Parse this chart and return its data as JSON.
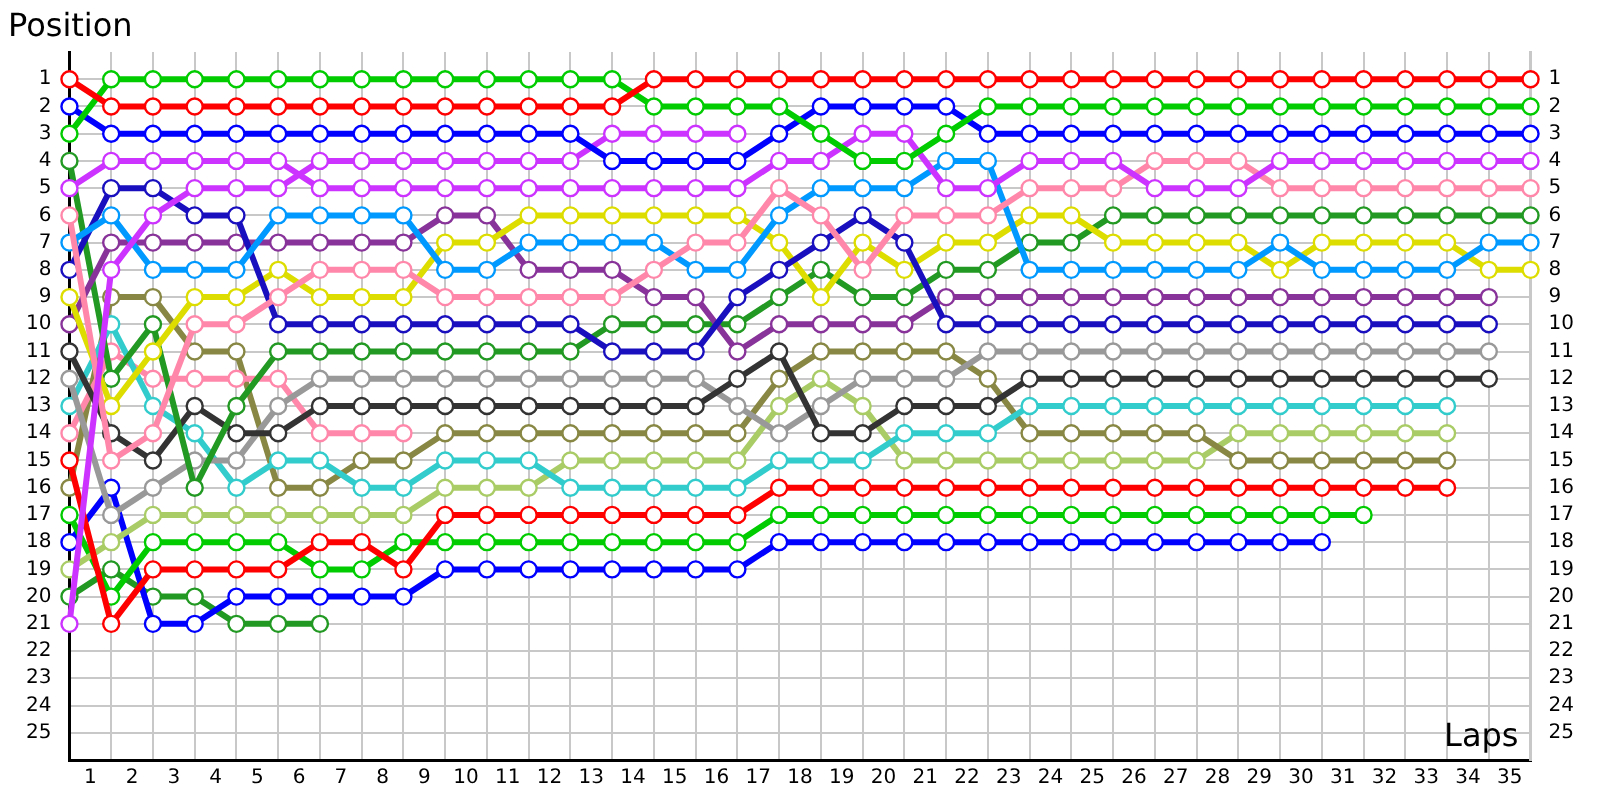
{
  "chart_data": {
    "type": "line",
    "xlabel": "Laps",
    "ylabel": "Position",
    "x": [
      0,
      1,
      2,
      3,
      4,
      5,
      6,
      7,
      8,
      9,
      10,
      11,
      12,
      13,
      14,
      15,
      16,
      17,
      18,
      19,
      20,
      21,
      22,
      23,
      24,
      25,
      26,
      27,
      28,
      29,
      30,
      31,
      32,
      33,
      34,
      35
    ],
    "xlim": [
      0,
      35
    ],
    "xticks": [
      {
        "value": 0.5,
        "label": "1"
      },
      {
        "value": 1.5,
        "label": "2"
      },
      {
        "value": 2.5,
        "label": "3"
      },
      {
        "value": 3.5,
        "label": "4"
      },
      {
        "value": 4.5,
        "label": "5"
      },
      {
        "value": 5.5,
        "label": "6"
      },
      {
        "value": 6.5,
        "label": "7"
      },
      {
        "value": 7.5,
        "label": "8"
      },
      {
        "value": 8.5,
        "label": "9"
      },
      {
        "value": 9.5,
        "label": "10"
      },
      {
        "value": 10.5,
        "label": "11"
      },
      {
        "value": 11.5,
        "label": "12"
      },
      {
        "value": 12.5,
        "label": "13"
      },
      {
        "value": 13.5,
        "label": "14"
      },
      {
        "value": 14.5,
        "label": "15"
      },
      {
        "value": 15.5,
        "label": "16"
      },
      {
        "value": 16.5,
        "label": "17"
      },
      {
        "value": 17.5,
        "label": "18"
      },
      {
        "value": 18.5,
        "label": "19"
      },
      {
        "value": 19.5,
        "label": "20"
      },
      {
        "value": 20.5,
        "label": "21"
      },
      {
        "value": 21.5,
        "label": "22"
      },
      {
        "value": 22.5,
        "label": "23"
      },
      {
        "value": 23.5,
        "label": "24"
      },
      {
        "value": 24.5,
        "label": "25"
      },
      {
        "value": 25.5,
        "label": "26"
      },
      {
        "value": 26.5,
        "label": "27"
      },
      {
        "value": 27.5,
        "label": "28"
      },
      {
        "value": 28.5,
        "label": "29"
      },
      {
        "value": 29.5,
        "label": "30"
      },
      {
        "value": 30.5,
        "label": "31"
      },
      {
        "value": 31.5,
        "label": "32"
      },
      {
        "value": 32.5,
        "label": "33"
      },
      {
        "value": 33.5,
        "label": "34"
      },
      {
        "value": 34.5,
        "label": "35"
      },
      {
        "value": 1,
        "label": null
      },
      {
        "value": 2,
        "label": null
      },
      {
        "value": 3,
        "label": null
      },
      {
        "value": 4,
        "label": null
      },
      {
        "value": 5,
        "label": null
      },
      {
        "value": 6,
        "label": null
      },
      {
        "value": 7,
        "label": null
      },
      {
        "value": 8,
        "label": null
      },
      {
        "value": 9,
        "label": null
      },
      {
        "value": 10,
        "label": null
      },
      {
        "value": 11,
        "label": null
      },
      {
        "value": 12,
        "label": null
      },
      {
        "value": 13,
        "label": null
      },
      {
        "value": 14,
        "label": null
      },
      {
        "value": 15,
        "label": null
      },
      {
        "value": 16,
        "label": null
      },
      {
        "value": 17,
        "label": null
      },
      {
        "value": 18,
        "label": null
      },
      {
        "value": 19,
        "label": null
      },
      {
        "value": 20,
        "label": null
      },
      {
        "value": 21,
        "label": null
      },
      {
        "value": 22,
        "label": null
      },
      {
        "value": 23,
        "label": null
      },
      {
        "value": 24,
        "label": null
      },
      {
        "value": 25,
        "label": null
      },
      {
        "value": 26,
        "label": null
      },
      {
        "value": 27,
        "label": null
      },
      {
        "value": 28,
        "label": null
      },
      {
        "value": 29,
        "label": null
      },
      {
        "value": 30,
        "label": null
      },
      {
        "value": 31,
        "label": null
      },
      {
        "value": 32,
        "label": null
      },
      {
        "value": 33,
        "label": null
      },
      {
        "value": 34,
        "label": null
      },
      {
        "value": 35,
        "label": null
      }
    ],
    "ylim": [
      26,
      0
    ],
    "yticks": [
      1,
      2,
      3,
      4,
      5,
      6,
      7,
      8,
      9,
      10,
      11,
      12,
      13,
      14,
      15,
      16,
      17,
      18,
      19,
      20,
      21,
      22,
      23,
      24,
      25
    ],
    "y2lim": [
      26,
      0
    ],
    "y2ticks": [
      1,
      2,
      3,
      4,
      5,
      6,
      7,
      8,
      9,
      10,
      11,
      12,
      13,
      14,
      15,
      16,
      17,
      18,
      19,
      20,
      21,
      22,
      23,
      24,
      25
    ],
    "grid": true,
    "legend": false,
    "marker": "circle",
    "line_style": "solid",
    "series": [
      {
        "color": "#ff0000",
        "values": [
          1,
          2,
          2,
          2,
          2,
          2,
          2,
          2,
          2,
          2,
          2,
          2,
          2,
          2,
          1,
          1,
          1,
          1,
          1,
          1,
          1,
          1,
          1,
          1,
          1,
          1,
          1,
          1,
          1,
          1,
          1,
          1,
          1,
          1,
          1,
          1
        ]
      },
      {
        "color": "#00cc00",
        "values": [
          3,
          1,
          1,
          1,
          1,
          1,
          1,
          1,
          1,
          1,
          1,
          1,
          1,
          1,
          2,
          2,
          2,
          2,
          3,
          4,
          4,
          3,
          2,
          2,
          2,
          2,
          2,
          2,
          2,
          2,
          2,
          2,
          2,
          2,
          2,
          2
        ]
      },
      {
        "color": "#0000ff",
        "values": [
          2,
          3,
          3,
          3,
          3,
          3,
          3,
          3,
          3,
          3,
          3,
          3,
          3,
          4,
          4,
          4,
          4,
          3,
          2,
          2,
          2,
          2,
          3,
          3,
          3,
          3,
          3,
          3,
          3,
          3,
          3,
          3,
          3,
          3,
          3,
          3
        ]
      },
      {
        "color": "#cc33ff",
        "values": [
          21,
          8,
          6,
          5,
          5,
          5,
          4,
          4,
          4,
          4,
          4,
          4,
          4,
          3,
          3,
          3,
          3,
          null,
          null,
          null,
          null,
          null,
          null,
          null,
          null,
          null,
          null,
          null,
          null,
          null,
          null,
          null,
          null,
          null,
          null,
          null
        ]
      },
      {
        "color": "#cc33ff",
        "values": [
          5,
          4,
          4,
          4,
          4,
          4,
          5,
          5,
          5,
          5,
          5,
          5,
          5,
          5,
          5,
          5,
          5,
          4,
          4,
          3,
          3,
          5,
          5,
          4,
          4,
          4,
          5,
          5,
          5,
          4,
          4,
          4,
          4,
          4,
          4,
          4
        ]
      },
      {
        "color": "#ff88aa",
        "values": [
          6,
          15,
          14,
          10,
          10,
          9,
          8,
          8,
          8,
          9,
          9,
          9,
          9,
          9,
          8,
          7,
          7,
          5,
          6,
          8,
          6,
          6,
          6,
          5,
          5,
          5,
          4,
          4,
          4,
          5,
          5,
          5,
          5,
          5,
          5,
          5
        ]
      },
      {
        "color": "#0099ff",
        "values": [
          7,
          6,
          8,
          8,
          8,
          6,
          6,
          6,
          6,
          8,
          8,
          7,
          7,
          7,
          7,
          8,
          8,
          6,
          5,
          5,
          5,
          4,
          4,
          8,
          8,
          8,
          8,
          8,
          8,
          7,
          8,
          8,
          8,
          8,
          7,
          7
        ]
      },
      {
        "color": "#1a0fbf",
        "values": [
          8,
          5,
          5,
          6,
          6,
          10,
          10,
          10,
          10,
          10,
          10,
          10,
          10,
          11,
          11,
          11,
          9,
          8,
          7,
          6,
          7,
          10,
          10,
          10,
          10,
          10,
          10,
          10,
          10,
          10,
          10,
          10,
          10,
          10,
          10,
          null
        ]
      },
      {
        "color": "#dddd00",
        "values": [
          9,
          13,
          11,
          9,
          9,
          8,
          9,
          9,
          9,
          7,
          7,
          6,
          6,
          6,
          6,
          6,
          6,
          7,
          9,
          7,
          8,
          7,
          7,
          6,
          6,
          7,
          7,
          7,
          7,
          8,
          7,
          7,
          7,
          7,
          8,
          8
        ]
      },
      {
        "color": "#883399",
        "values": [
          10,
          7,
          7,
          7,
          7,
          7,
          7,
          7,
          7,
          6,
          6,
          8,
          8,
          8,
          9,
          9,
          11,
          10,
          10,
          10,
          10,
          9,
          9,
          9,
          9,
          9,
          9,
          9,
          9,
          9,
          9,
          9,
          9,
          9,
          9,
          null
        ]
      },
      {
        "color": "#229922",
        "values": [
          4,
          12,
          10,
          16,
          13,
          11,
          11,
          11,
          11,
          11,
          11,
          11,
          11,
          10,
          10,
          10,
          10,
          9,
          8,
          9,
          9,
          8,
          8,
          7,
          7,
          6,
          6,
          6,
          6,
          6,
          6,
          6,
          6,
          6,
          6,
          6
        ]
      },
      {
        "color": "#333333",
        "values": [
          11,
          14,
          15,
          13,
          14,
          14,
          13,
          13,
          13,
          13,
          13,
          13,
          13,
          13,
          13,
          13,
          12,
          11,
          14,
          14,
          13,
          13,
          13,
          12,
          12,
          12,
          12,
          12,
          12,
          12,
          12,
          12,
          12,
          12,
          12,
          null
        ]
      },
      {
        "color": "#999999",
        "values": [
          12,
          17,
          16,
          15,
          15,
          13,
          12,
          12,
          12,
          12,
          12,
          12,
          12,
          12,
          12,
          12,
          13,
          14,
          13,
          12,
          12,
          12,
          11,
          11,
          11,
          11,
          11,
          11,
          11,
          11,
          11,
          11,
          11,
          11,
          11,
          null
        ]
      },
      {
        "color": "#33cccc",
        "values": [
          13,
          10,
          13,
          14,
          16,
          15,
          15,
          16,
          16,
          15,
          15,
          15,
          16,
          16,
          16,
          16,
          16,
          15,
          15,
          15,
          14,
          14,
          14,
          13,
          13,
          13,
          13,
          13,
          13,
          13,
          13,
          13,
          13,
          13,
          null,
          null
        ]
      },
      {
        "color": "#ff88aa",
        "values": [
          14,
          11,
          12,
          12,
          12,
          12,
          14,
          14,
          14,
          null,
          null,
          null,
          null,
          null,
          null,
          null,
          null,
          null,
          null,
          null,
          null,
          null,
          null,
          null,
          null,
          null,
          null,
          null,
          null,
          null,
          null,
          null,
          null,
          null,
          null,
          null
        ]
      },
      {
        "color": "#ff0000",
        "values": [
          15,
          21,
          19,
          19,
          19,
          19,
          18,
          18,
          19,
          17,
          17,
          17,
          17,
          17,
          17,
          17,
          17,
          16,
          16,
          16,
          16,
          16,
          16,
          16,
          16,
          16,
          16,
          16,
          16,
          16,
          16,
          16,
          16,
          16,
          null,
          null
        ]
      },
      {
        "color": "#888844",
        "values": [
          16,
          9,
          9,
          11,
          11,
          16,
          16,
          15,
          15,
          14,
          14,
          14,
          14,
          14,
          14,
          14,
          14,
          12,
          11,
          11,
          11,
          11,
          12,
          14,
          14,
          14,
          14,
          14,
          15,
          15,
          15,
          15,
          15,
          15,
          null,
          null
        ]
      },
      {
        "color": "#aacc66",
        "values": [
          19,
          18,
          17,
          17,
          17,
          17,
          17,
          17,
          17,
          16,
          16,
          16,
          15,
          15,
          15,
          15,
          15,
          13,
          12,
          13,
          15,
          15,
          15,
          15,
          15,
          15,
          15,
          15,
          14,
          14,
          14,
          14,
          14,
          14,
          null,
          null
        ]
      },
      {
        "color": "#00cc00",
        "values": [
          17,
          20,
          18,
          18,
          18,
          18,
          19,
          19,
          18,
          18,
          18,
          18,
          18,
          18,
          18,
          18,
          18,
          17,
          17,
          17,
          17,
          17,
          17,
          17,
          17,
          17,
          17,
          17,
          17,
          17,
          17,
          17,
          null,
          null,
          null,
          null
        ]
      },
      {
        "color": "#0000ff",
        "values": [
          18,
          16,
          21,
          21,
          20,
          20,
          20,
          20,
          20,
          19,
          19,
          19,
          19,
          19,
          19,
          19,
          19,
          18,
          18,
          18,
          18,
          18,
          18,
          18,
          18,
          18,
          18,
          18,
          18,
          18,
          18,
          null,
          null,
          null,
          null,
          null
        ]
      },
      {
        "color": "#229922",
        "values": [
          20,
          19,
          20,
          20,
          21,
          21,
          21,
          null,
          null,
          null,
          null,
          null,
          null,
          null,
          null,
          null,
          null,
          null,
          null,
          null,
          null,
          null,
          null,
          null,
          null,
          null,
          null,
          null,
          null,
          null,
          null,
          null,
          null,
          null,
          null,
          null
        ]
      }
    ]
  }
}
